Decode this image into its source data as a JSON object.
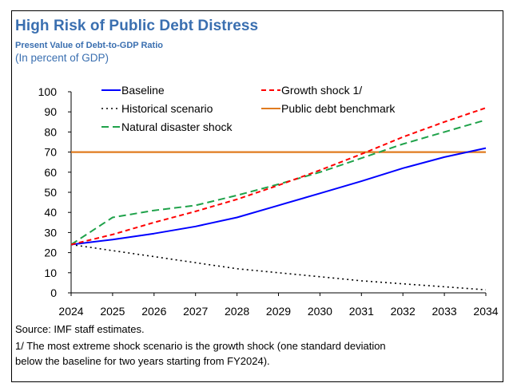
{
  "header": {
    "title": "High Risk of Public Debt Distress",
    "subtitle": "Present Value of Debt-to-GDP Ratio",
    "units": "(In percent of GDP)"
  },
  "footer": {
    "source": "Source: IMF staff estimates.",
    "note_line1": "1/ The most extreme shock scenario is the growth shock (one standard deviation",
    "note_line2": "below the baseline for two years starting from FY2024)."
  },
  "chart_data": {
    "type": "line",
    "title": "High Risk of Public Debt Distress",
    "subtitle": "Present Value of Debt-to-GDP Ratio",
    "ylabel": "(In percent of GDP)",
    "xlabel": "",
    "x": [
      2024,
      2025,
      2026,
      2027,
      2028,
      2029,
      2030,
      2031,
      2032,
      2033,
      2034
    ],
    "ylim": [
      0,
      100
    ],
    "yticks": [
      0,
      10,
      20,
      30,
      40,
      50,
      60,
      70,
      80,
      90,
      100
    ],
    "grid": false,
    "legend_placement": "top",
    "series": [
      {
        "name": "Baseline",
        "color": "#0000ff",
        "style": "solid",
        "values": [
          24,
          26.5,
          29.5,
          33,
          37.5,
          43.5,
          49.5,
          55.5,
          62,
          67.5,
          72
        ]
      },
      {
        "name": "Historical scenario",
        "color": "#000000",
        "style": "dotted",
        "values": [
          24,
          21,
          18,
          15,
          12,
          10,
          8,
          6,
          4.5,
          3,
          1.5
        ]
      },
      {
        "name": "Natural disaster shock",
        "color": "#1fa24a",
        "style": "dashed",
        "values": [
          24,
          37.5,
          41,
          43.5,
          48.5,
          54,
          60,
          67,
          74,
          80,
          86
        ]
      },
      {
        "name": "Growth shock 1/",
        "color": "#ff0000",
        "style": "dashed",
        "values": [
          24,
          29,
          35,
          40.5,
          46.5,
          53.5,
          61,
          69,
          77.5,
          85,
          92
        ]
      },
      {
        "name": "Public debt benchmark",
        "color": "#e07b1f",
        "style": "solid",
        "values": [
          70,
          70,
          70,
          70,
          70,
          70,
          70,
          70,
          70,
          70,
          70
        ]
      }
    ]
  }
}
